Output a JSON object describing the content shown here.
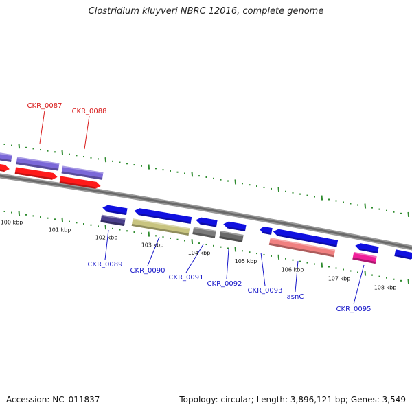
{
  "title": "Clostridium kluyveri NBRC 12016, complete genome",
  "accession": "Accession: NC_011837",
  "topology": "Topology: circular; Length: 3,896,121 bp; Genes: 3,549",
  "colors": {
    "backbone": "#7a7a7a",
    "tick": "#2e8b2e",
    "label_top": "#d81b1b",
    "label_bottom": "#1515c8"
  },
  "scale_ticks": [
    {
      "label": "100 kbp"
    },
    {
      "label": "101 kbp"
    },
    {
      "label": "102 kbp"
    },
    {
      "label": "103 kbp"
    },
    {
      "label": "104 kbp"
    },
    {
      "label": "105 kbp"
    },
    {
      "label": "106 kbp"
    },
    {
      "label": "107 kbp"
    },
    {
      "label": "108 kbp"
    }
  ],
  "genes_top": [
    {
      "name": "CKR_0087",
      "cds_color": "#7b68d8",
      "cds_shade": "#5548a8",
      "gene_color": "#ff1a1a"
    },
    {
      "name": "CKR_0088",
      "cds_color": "#7b68d8",
      "cds_shade": "#5548a8",
      "gene_color": "#ff1a1a"
    }
  ],
  "genes_bottom": [
    {
      "name": "CKR_0089",
      "gene_color": "#1010e0",
      "cds_color": "#4a3f8a"
    },
    {
      "name": "CKR_0090",
      "gene_color": "#1010e0",
      "cds_color": "#c8c480"
    },
    {
      "name": "CKR_0091",
      "gene_color": "#1010e0",
      "cds_color": "#7a7a7a"
    },
    {
      "name": "CKR_0092",
      "gene_color": "#1010e0",
      "cds_color": "#6a6a6a"
    },
    {
      "name": "CKR_0093",
      "gene_color": "#1010e0",
      "cds_color": ""
    },
    {
      "name": "asnC",
      "gene_color": "#1010e0",
      "cds_color": "#f08080"
    },
    {
      "name": "CKR_0095",
      "gene_color": "#1010e0",
      "cds_color": "#f0209a"
    }
  ]
}
